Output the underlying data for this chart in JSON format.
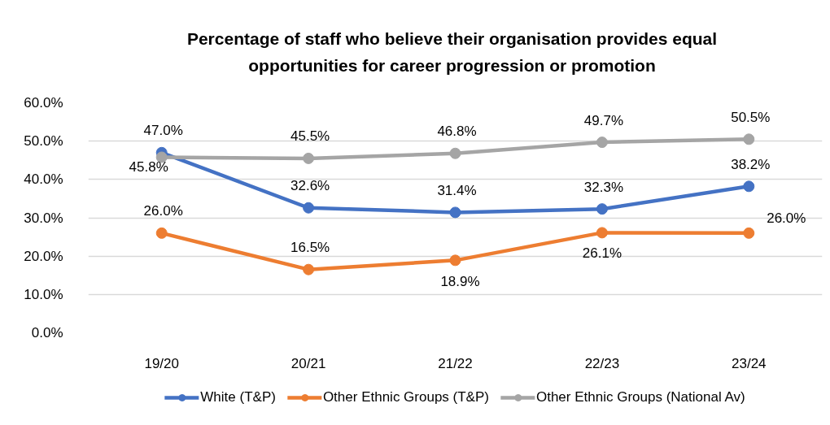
{
  "chart_data": {
    "type": "line",
    "title": "Percentage of staff who believe their organisation provides equal opportunities for career progression or promotion",
    "categories": [
      "19/20",
      "20/21",
      "21/22",
      "22/23",
      "23/24"
    ],
    "series": [
      {
        "name": "White (T&P)",
        "color": "#4472c4",
        "values": [
          47.0,
          32.6,
          31.4,
          32.3,
          38.2
        ],
        "value_labels": [
          "47.0%",
          "32.6%",
          "31.4%",
          "32.3%",
          "38.2%"
        ]
      },
      {
        "name": "Other Ethnic Groups (T&P)",
        "color": "#ed7d31",
        "values": [
          26.0,
          16.5,
          18.9,
          26.1,
          26.0
        ],
        "value_labels": [
          "26.0%",
          "16.5%",
          "18.9%",
          "26.1%",
          "26.0%"
        ]
      },
      {
        "name": "Other Ethnic Groups (National Av)",
        "color": "#a5a5a5",
        "values": [
          45.8,
          45.5,
          46.8,
          49.7,
          50.5
        ],
        "value_labels": [
          "45.8%",
          "45.5%",
          "46.8%",
          "49.7%",
          "50.5%"
        ]
      }
    ],
    "ylim": [
      0,
      60
    ],
    "yticks": [
      {
        "value": 0,
        "label": "0.0%"
      },
      {
        "value": 10,
        "label": "10.0%"
      },
      {
        "value": 20,
        "label": "20.0%"
      },
      {
        "value": 30,
        "label": "30.0%"
      },
      {
        "value": 40,
        "label": "40.0%"
      },
      {
        "value": 50,
        "label": "50.0%"
      },
      {
        "value": 60,
        "label": "60.0%"
      }
    ],
    "grid": "y",
    "legend": "bottom",
    "marker": "circle",
    "line_style": "solid"
  }
}
